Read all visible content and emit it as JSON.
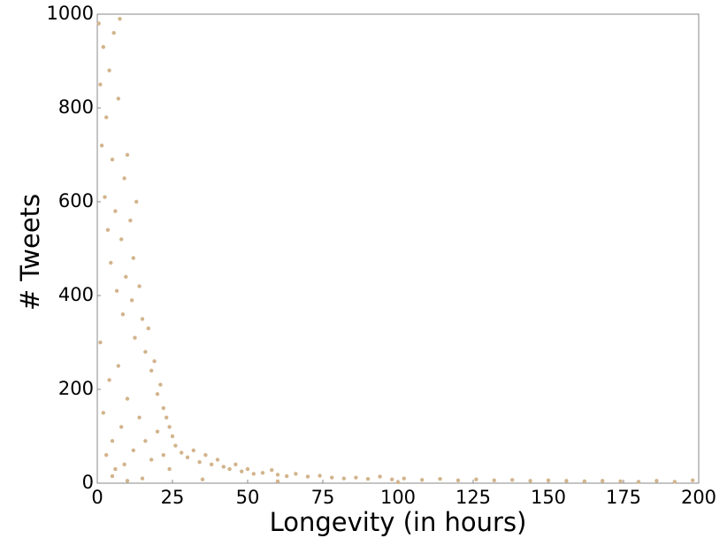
{
  "chart_data": {
    "type": "scatter",
    "x_label": "Longevity (in hours)",
    "y_label": "# Tweets",
    "color": "#d2b48c",
    "xlim": [
      0,
      200
    ],
    "xticks": [
      0,
      25,
      50,
      75,
      100,
      125,
      150,
      175,
      200
    ],
    "ylim": [
      0,
      1000
    ],
    "yticks": [
      0,
      200,
      400,
      600,
      800,
      1000
    ],
    "x": [
      0.5,
      1,
      1.5,
      2,
      2.5,
      3,
      3.5,
      4,
      4.5,
      5,
      5.5,
      6,
      6.5,
      7,
      7.5,
      8,
      8.5,
      9,
      9.5,
      10,
      11,
      11.5,
      12,
      12.5,
      13,
      14,
      15,
      16,
      17,
      18,
      19,
      20,
      21,
      22,
      23,
      24,
      25,
      1,
      2,
      3,
      4,
      5,
      6,
      7,
      8,
      9,
      10,
      12,
      14,
      16,
      18,
      20,
      22,
      24,
      26,
      28,
      30,
      32,
      34,
      36,
      38,
      40,
      42,
      44,
      46,
      48,
      50,
      52,
      55,
      58,
      60,
      63,
      66,
      70,
      74,
      78,
      82,
      86,
      90,
      94,
      98,
      102,
      108,
      114,
      120,
      126,
      132,
      138,
      144,
      150,
      156,
      162,
      168,
      174,
      180,
      186,
      192,
      198,
      15,
      35,
      60,
      100,
      5,
      10
    ],
    "y": [
      980,
      850,
      720,
      930,
      610,
      780,
      540,
      880,
      470,
      690,
      960,
      580,
      410,
      820,
      990,
      520,
      360,
      650,
      440,
      700,
      560,
      390,
      480,
      310,
      600,
      420,
      350,
      280,
      330,
      240,
      260,
      190,
      210,
      160,
      140,
      120,
      100,
      300,
      150,
      60,
      220,
      90,
      30,
      250,
      120,
      40,
      180,
      70,
      140,
      90,
      50,
      110,
      60,
      30,
      80,
      65,
      55,
      70,
      45,
      60,
      40,
      50,
      35,
      30,
      40,
      25,
      30,
      20,
      22,
      28,
      18,
      15,
      20,
      14,
      16,
      12,
      10,
      12,
      9,
      14,
      8,
      10,
      7,
      9,
      6,
      8,
      6,
      7,
      5,
      6,
      5,
      4,
      5,
      4,
      3,
      5,
      3,
      6,
      10,
      8,
      4,
      2,
      15,
      5
    ]
  }
}
